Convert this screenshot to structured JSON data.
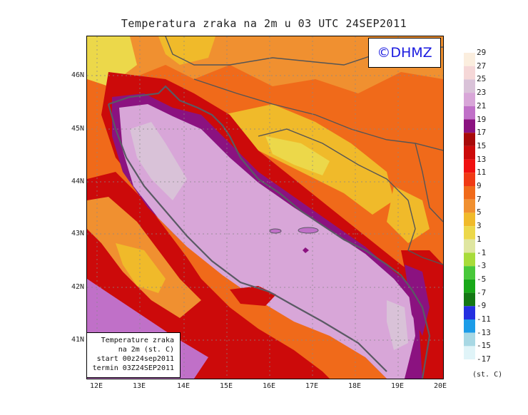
{
  "title": "Temperatura zraka na 2m u 03 UTC 24SEP2011",
  "watermark": "©DHMZ",
  "legend_box": {
    "line1": "Temperature zraka",
    "line2": "na 2m (st. C)",
    "line3": "start 00z24sep2011",
    "line4": "termin 03Z24SEP2011"
  },
  "lat_ticks": [
    "46N",
    "45N",
    "44N",
    "43N",
    "42N",
    "41N"
  ],
  "lon_ticks": [
    "12E",
    "13E",
    "14E",
    "15E",
    "16E",
    "17E",
    "18E",
    "19E",
    "20E"
  ],
  "colorbar": {
    "units": "(st. C)",
    "labels": [
      "29",
      "27",
      "25",
      "23",
      "21",
      "19",
      "17",
      "15",
      "13",
      "11",
      "9",
      "7",
      "5",
      "3",
      "1",
      "-1",
      "-3",
      "-5",
      "-7",
      "-9",
      "-11",
      "-13",
      "-15",
      "-17"
    ],
    "colors": [
      "#fbeede",
      "#f5d7d7",
      "#d9c2d8",
      "#d8a6d8",
      "#c070c8",
      "#8b1280",
      "#a80a0a",
      "#cc0a0a",
      "#f01010",
      "#f03a14",
      "#f06a1a",
      "#f09030",
      "#f0ba2a",
      "#ecd84a",
      "#dfe6a0",
      "#a8dc3a",
      "#48c83a",
      "#18a818",
      "#147814",
      "#2430e0",
      "#1c9ce8",
      "#a8d8e4",
      "#e0f4f8",
      "#ffffff"
    ]
  },
  "colors": {
    "sea_main": "#d8a6d8",
    "sea_deep": "#d9c2d8",
    "coast_line": "#5a5a64",
    "border_line": "#555555"
  }
}
